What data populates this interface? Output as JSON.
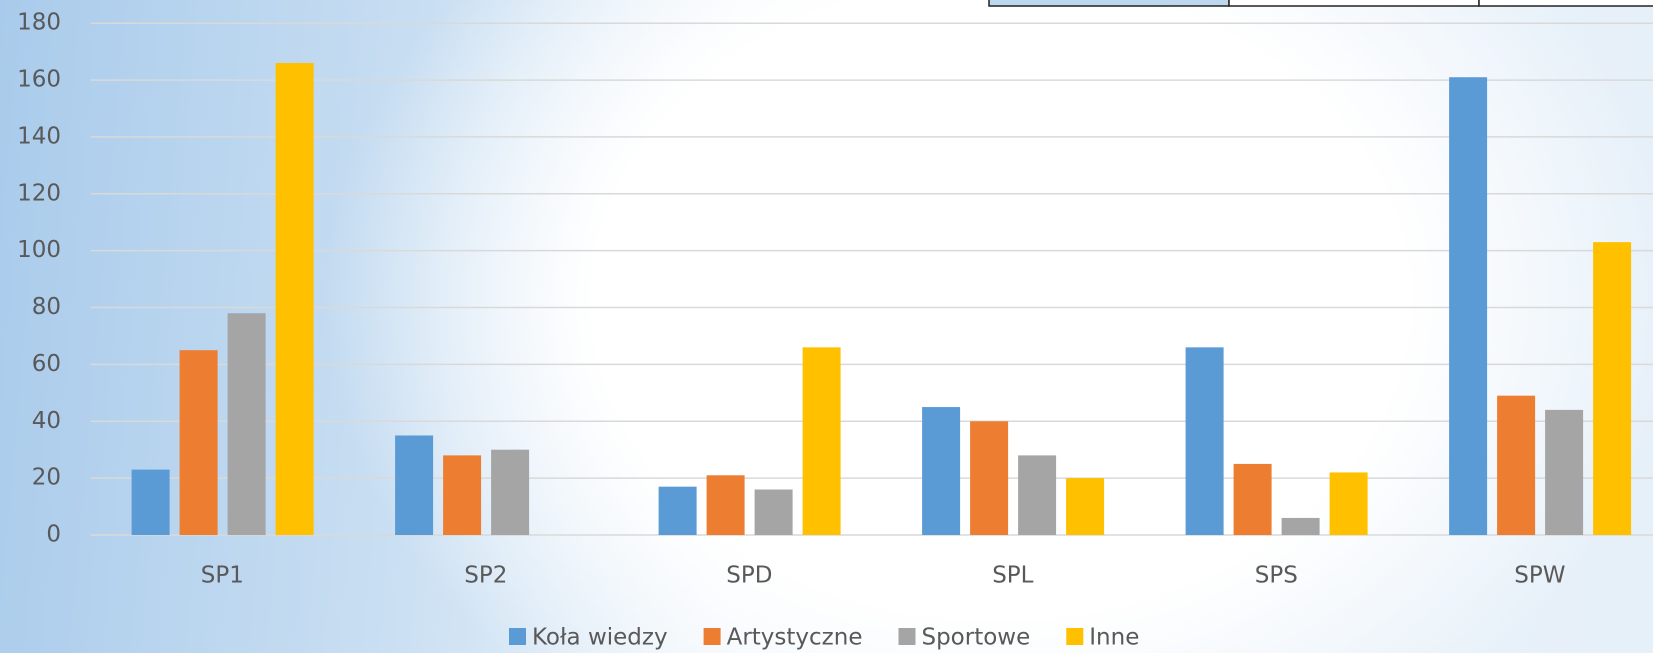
{
  "chart_data": {
    "type": "bar",
    "categories": [
      "SP1",
      "SP2",
      "SPD",
      "SPL",
      "SPS",
      "SPW"
    ],
    "series": [
      {
        "name": "Koła wiedzy",
        "color": "#5b9bd5",
        "values": [
          23,
          35,
          17,
          45,
          66,
          161
        ]
      },
      {
        "name": "Artystyczne",
        "color": "#ed7d31",
        "values": [
          65,
          28,
          21,
          40,
          25,
          49
        ]
      },
      {
        "name": "Sportowe",
        "color": "#a5a5a5",
        "values": [
          78,
          30,
          16,
          28,
          6,
          44
        ]
      },
      {
        "name": "Inne",
        "color": "#ffc000",
        "values": [
          166,
          0,
          66,
          20,
          22,
          103
        ]
      }
    ],
    "ylim": [
      0,
      180
    ],
    "yticks": [
      0,
      20,
      40,
      60,
      80,
      100,
      120,
      140,
      160,
      180
    ],
    "grid": true,
    "legend": "bottom"
  }
}
